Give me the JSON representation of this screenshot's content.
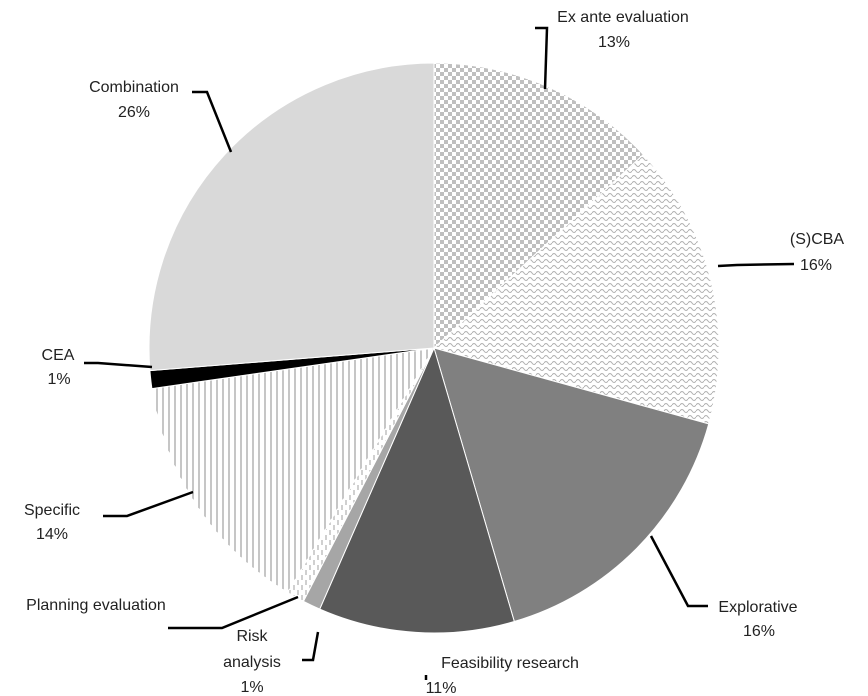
{
  "chart_data": {
    "type": "pie",
    "title": "",
    "slices": [
      {
        "name": "Ex ante evaluation",
        "value": 13,
        "pct": "13%",
        "fill": "pattern-checker"
      },
      {
        "name": "(S)CBA",
        "value": 16,
        "pct": "16%",
        "fill": "pattern-wave"
      },
      {
        "name": "Explorative",
        "value": 16,
        "pct": "16%",
        "fill": "#808080"
      },
      {
        "name": "Feasibility research",
        "value": 11,
        "pct": "11%",
        "fill": "#595959"
      },
      {
        "name": "Risk analysis",
        "value": 1,
        "pct": "1%",
        "fill": "#a6a6a6"
      },
      {
        "name": "Planning evaluation",
        "value": 1,
        "pct": "",
        "fill": "pattern-dashed"
      },
      {
        "name": "Specific",
        "value": 14,
        "pct": "14%",
        "fill": "pattern-vstripes"
      },
      {
        "name": "CEA",
        "value": 1,
        "pct": "1%",
        "fill": "#000000"
      },
      {
        "name": "Combination",
        "value": 26,
        "pct": "26%",
        "fill": "#d9d9d9"
      }
    ],
    "start_angle": "12 o'clock",
    "direction": "clockwise",
    "legend": "none",
    "labels": "outside with leader lines"
  }
}
